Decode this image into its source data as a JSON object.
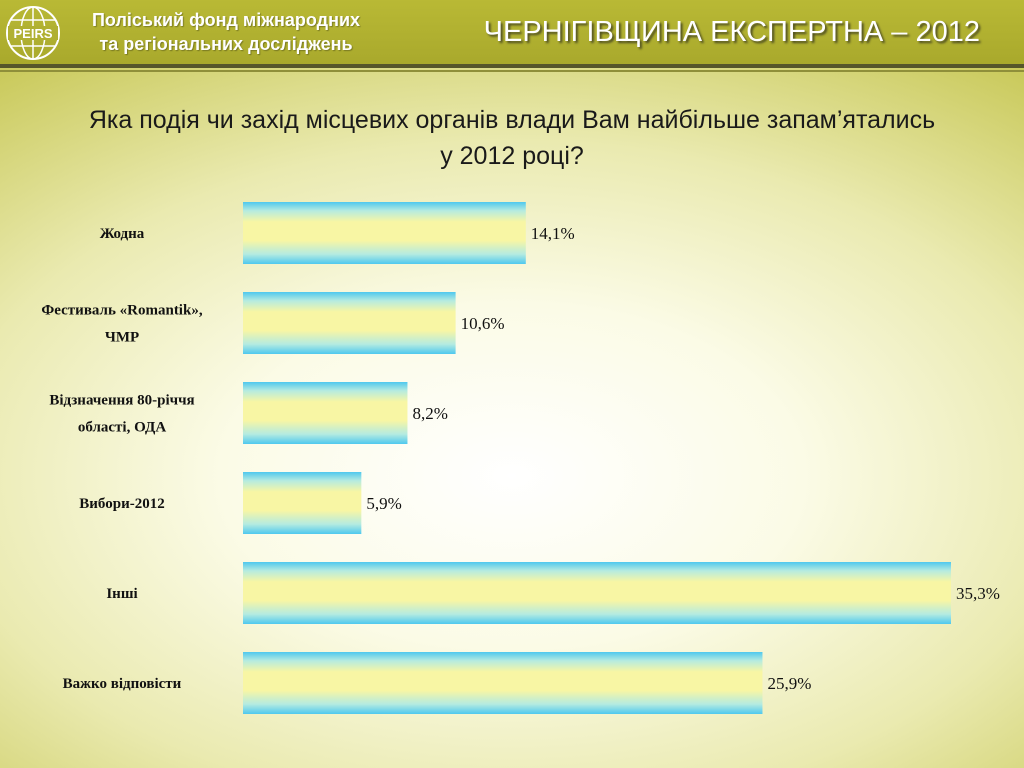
{
  "header": {
    "logo_text": "PEIRS",
    "org_name_line1": "Поліський фонд міжнародних",
    "org_name_line2": "та регіональних досліджень",
    "project_title": "ЧЕРНІГІВЩИНА ЕКСПЕРТНА – 2012",
    "background_color": "#b9b935"
  },
  "question": {
    "line1": "Яка подія чи захід місцевих органів влади Вам найбільше запам’ятались",
    "line2": "у 2012 році?"
  },
  "chart_data": {
    "type": "bar",
    "orientation": "horizontal",
    "categories": [
      [
        "Жодна"
      ],
      [
        "Фестиваль «Romantik»,",
        "ЧМР"
      ],
      [
        "Відзначення 80-річчя",
        "області, ОДА"
      ],
      [
        "Вибори-2012"
      ],
      [
        "Інші"
      ],
      [
        "Важко відповісти"
      ]
    ],
    "values": [
      14.1,
      10.6,
      8.2,
      5.9,
      35.3,
      25.9
    ],
    "value_labels": [
      "14,1%",
      "10,6%",
      "8,2%",
      "5,9%",
      "35,3%",
      "25,9%"
    ],
    "unit": "%",
    "title": "",
    "xlabel": "",
    "ylabel": "",
    "xlim": [
      0,
      35.3
    ],
    "grid": false,
    "legend": "none",
    "bar_colors": [
      "#4fc8ee",
      "#f8f6a4"
    ]
  }
}
